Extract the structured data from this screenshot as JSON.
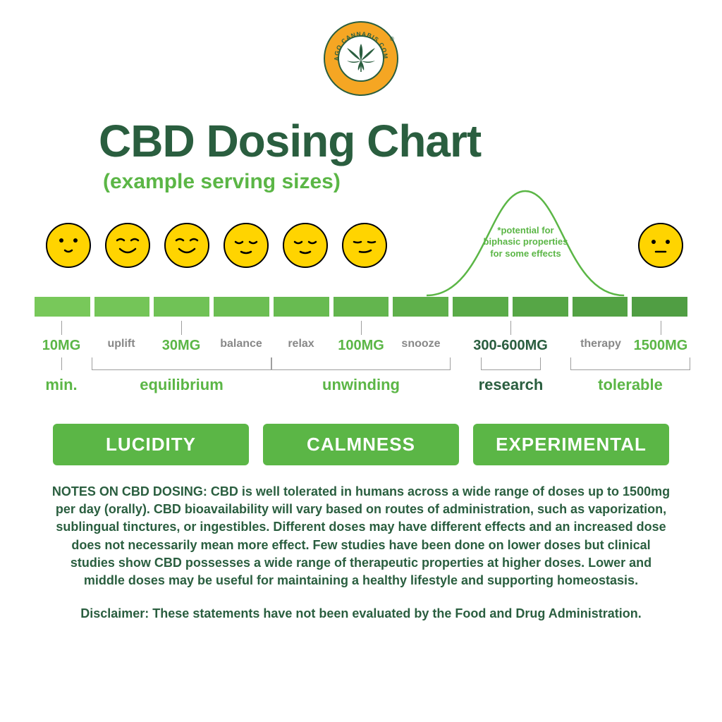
{
  "colors": {
    "dark_green": "#2a5e3f",
    "bright_green": "#5bb646",
    "seg_gradient": [
      "#78c85a",
      "#74c558",
      "#70c256",
      "#6cbe53",
      "#68bb51",
      "#63b54e",
      "#5fb04b",
      "#5aab48",
      "#56a646",
      "#53a244",
      "#509e43"
    ],
    "yellow": "#ffd400",
    "orange": "#f5a623",
    "gray_text": "#888888",
    "gray_line": "#9e9e9e"
  },
  "logo": {
    "text": "CHICAGO CANNABIS COMPANY"
  },
  "title": "CBD Dosing Chart",
  "subtitle": "(example serving sizes)",
  "curve_note": "*potential for biphasic properties for some effects",
  "faces": [
    {
      "left_pct": 2,
      "type": "smile_dot"
    },
    {
      "left_pct": 11,
      "type": "smile_curve"
    },
    {
      "left_pct": 20,
      "type": "smile_curve"
    },
    {
      "left_pct": 29,
      "type": "closed_happy"
    },
    {
      "left_pct": 38,
      "type": "closed_happy"
    },
    {
      "left_pct": 47,
      "type": "closed_smirk"
    },
    {
      "left_pct": 92,
      "type": "neutral_dot"
    }
  ],
  "curve": {
    "left_pct": 60,
    "width_pct": 30
  },
  "segments_count": 11,
  "dose_labels": [
    {
      "text": "10MG",
      "left_pct": 4.5,
      "color": "bright_green",
      "tick": true
    },
    {
      "text": "uplift",
      "left_pct": 13.6,
      "effect": true
    },
    {
      "text": "30MG",
      "left_pct": 22.7,
      "color": "bright_green",
      "tick": true
    },
    {
      "text": "balance",
      "left_pct": 31.8,
      "effect": true
    },
    {
      "text": "relax",
      "left_pct": 40.9,
      "effect": true
    },
    {
      "text": "100MG",
      "left_pct": 50.0,
      "color": "bright_green",
      "tick": true
    },
    {
      "text": "snooze",
      "left_pct": 59.1,
      "effect": true
    },
    {
      "text": "300-600MG",
      "left_pct": 72.7,
      "color": "dark_green",
      "tick": true,
      "wide": true
    },
    {
      "text": "therapy",
      "left_pct": 86.4,
      "effect": true
    },
    {
      "text": "1500MG",
      "left_pct": 95.5,
      "color": "bright_green",
      "tick": true
    }
  ],
  "categories": [
    {
      "text": "min.",
      "left_pct": 4.5,
      "single": true,
      "color": "bright_green"
    },
    {
      "text": "equilibrium",
      "from_pct": 9.1,
      "to_pct": 36.4,
      "color": "bright_green"
    },
    {
      "text": "unwinding",
      "from_pct": 36.4,
      "to_pct": 63.6,
      "color": "bright_green"
    },
    {
      "text": "research",
      "from_pct": 68.2,
      "to_pct": 77.3,
      "color": "dark_green"
    },
    {
      "text": "tolerable",
      "from_pct": 81.8,
      "to_pct": 100,
      "color": "bright_green"
    }
  ],
  "pills": [
    {
      "text": "LUCIDITY"
    },
    {
      "text": "CALMNESS"
    },
    {
      "text": "EXPERIMENTAL"
    }
  ],
  "notes": "NOTES ON CBD DOSING: CBD is well tolerated in humans across a wide range of doses up to 1500mg per day (orally). CBD bioavailability will vary based on routes of administration, such as vaporization, sublingual tinctures, or ingestibles. Different doses may have different effects and an increased dose does not necessarily mean more effect. Few studies have been done on lower doses but clinical studies show CBD possesses a wide range of therapeutic properties at higher doses. Lower and middle doses may be useful for maintaining a healthy lifestyle and supporting homeostasis.",
  "disclaimer": "Disclaimer: These statements have not been evaluated by the Food and Drug Administration."
}
